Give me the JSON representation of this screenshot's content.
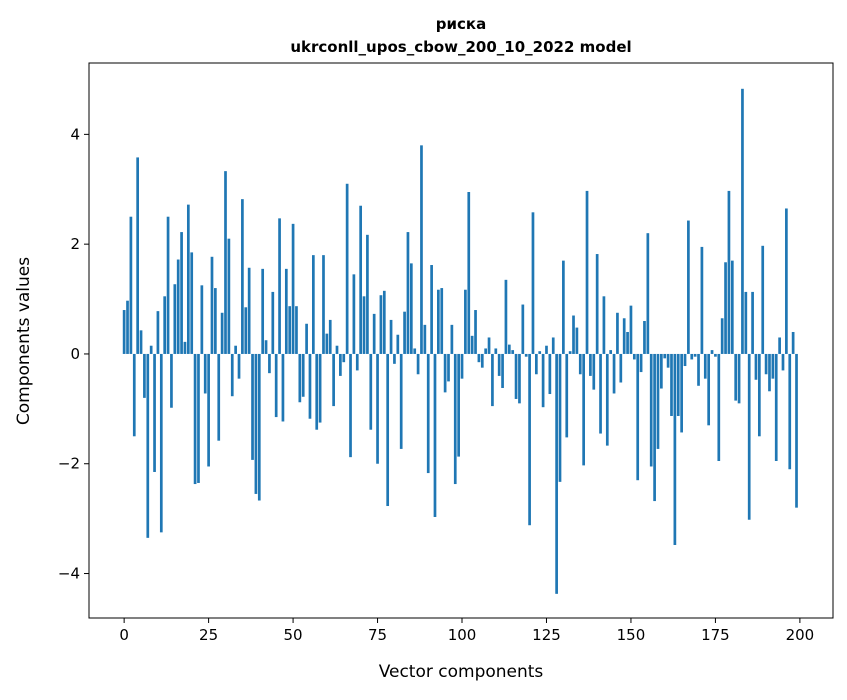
{
  "chart_data": {
    "type": "bar",
    "title": "риска",
    "subtitle": "ukrconll_upos_cbow_200_10_2022 model",
    "xlabel": "Vector components",
    "ylabel": "Components values",
    "xlim": [
      -10.4,
      209.8
    ],
    "ylim": [
      -4.81,
      5.3
    ],
    "xticks": [
      0,
      25,
      50,
      75,
      100,
      125,
      150,
      175,
      200
    ],
    "yticks": [
      -4,
      -2,
      0,
      2,
      4
    ],
    "grid": false,
    "color": "#1f77b4",
    "values": [
      0.8,
      0.97,
      2.5,
      -1.5,
      3.58,
      0.43,
      -0.8,
      -3.35,
      0.15,
      -2.15,
      0.78,
      -3.25,
      1.05,
      2.5,
      -0.98,
      1.27,
      1.72,
      2.22,
      0.22,
      2.72,
      1.85,
      -2.37,
      -2.35,
      1.25,
      -0.72,
      -2.05,
      1.77,
      1.2,
      -1.58,
      0.75,
      3.33,
      2.1,
      -0.77,
      0.15,
      -0.45,
      2.82,
      0.85,
      1.57,
      -1.93,
      -2.55,
      -2.67,
      1.55,
      0.25,
      -0.35,
      1.13,
      -1.15,
      2.47,
      -1.23,
      1.55,
      0.87,
      2.37,
      0.87,
      -0.88,
      -0.78,
      0.55,
      -1.18,
      1.8,
      -1.38,
      -1.25,
      1.8,
      0.37,
      0.62,
      -0.95,
      0.15,
      -0.4,
      -0.15,
      3.1,
      -1.88,
      1.45,
      -0.3,
      2.7,
      1.05,
      2.17,
      -1.38,
      0.73,
      -2.0,
      1.07,
      1.15,
      -2.77,
      0.62,
      -0.18,
      0.35,
      -1.73,
      0.77,
      2.22,
      1.65,
      0.1,
      -0.37,
      3.8,
      0.53,
      -2.17,
      1.62,
      -2.97,
      1.17,
      1.2,
      -0.7,
      -0.5,
      0.53,
      -2.37,
      -1.87,
      -0.45,
      1.17,
      2.95,
      0.33,
      0.8,
      -0.15,
      -0.25,
      0.1,
      0.3,
      -0.95,
      0.1,
      -0.4,
      -0.62,
      1.35,
      0.17,
      0.07,
      -0.82,
      -0.9,
      0.9,
      -0.05,
      -3.12,
      2.58,
      -0.37,
      0.05,
      -0.97,
      0.15,
      -0.73,
      0.3,
      -4.37,
      -2.33,
      1.7,
      -1.52,
      0.05,
      0.7,
      0.48,
      -0.37,
      -2.03,
      2.97,
      -0.4,
      -0.65,
      1.82,
      -1.45,
      1.05,
      -1.67,
      0.07,
      -0.72,
      0.75,
      -0.52,
      0.65,
      0.4,
      0.88,
      -0.1,
      -2.3,
      -0.33,
      0.6,
      2.2,
      -2.05,
      -2.68,
      -1.73,
      -0.63,
      -0.08,
      -0.25,
      -1.13,
      -3.48,
      -1.13,
      -1.43,
      -0.22,
      2.43,
      -0.1,
      -0.05,
      -0.58,
      1.95,
      -0.45,
      -1.3,
      0.07,
      -0.05,
      -1.95,
      0.65,
      1.67,
      2.97,
      1.7,
      -0.85,
      -0.9,
      4.83,
      1.13,
      -3.02,
      1.13,
      -0.47,
      -1.5,
      1.97,
      -0.37,
      -0.68,
      -0.45,
      -1.95,
      0.3,
      -0.3,
      2.65,
      -2.1,
      0.4,
      -2.8
    ]
  }
}
